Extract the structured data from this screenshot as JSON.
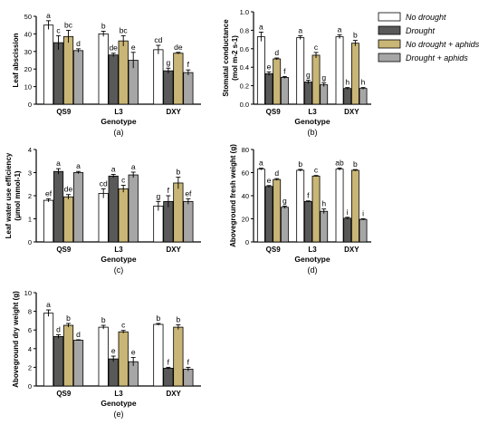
{
  "legend": {
    "entries": [
      {
        "label": "No drought",
        "color": "#ffffff"
      },
      {
        "label": "Drought",
        "color": "#595959"
      },
      {
        "label": "No drought + aphids",
        "color": "#c9b676"
      },
      {
        "label": "Drought + aphids",
        "color": "#a6a6a6"
      }
    ]
  },
  "chart_data": [
    {
      "type": "bar",
      "panel": "(a)",
      "categories": [
        "QS9",
        "L3",
        "DXY"
      ],
      "ylabel": "Leaf abscission",
      "xlabel": "Genotype",
      "ylim": [
        0,
        50
      ],
      "yticks": [
        "0",
        "10",
        "20",
        "30",
        "40",
        "50"
      ],
      "series": [
        {
          "name": "No drought",
          "values": [
            45,
            40,
            31
          ],
          "errors": [
            2.5,
            1.5,
            2.5
          ],
          "letters": [
            "a",
            "b",
            "cd"
          ]
        },
        {
          "name": "Drought",
          "values": [
            35,
            28,
            19
          ],
          "errors": [
            4,
            1,
            1.5
          ],
          "letters": [
            "c",
            "de",
            "g"
          ]
        },
        {
          "name": "No drought + aphids",
          "values": [
            38.5,
            36,
            29
          ],
          "errors": [
            3.5,
            3,
            0.5
          ],
          "letters": [
            "bc",
            "bc",
            "de"
          ]
        },
        {
          "name": "Drought + aphids",
          "values": [
            30.5,
            25,
            18
          ],
          "errors": [
            1,
            4.5,
            1.5
          ],
          "letters": [
            "d",
            "e",
            "f"
          ]
        }
      ]
    },
    {
      "type": "bar",
      "panel": "(b)",
      "categories": [
        "QS9",
        "L3",
        "DXY"
      ],
      "ylabel": "Stomatal conductance",
      "yunit": "(mol m-2 s-1)",
      "xlabel": "Genotype",
      "ylim": [
        0,
        1.0
      ],
      "yticks": [
        "0.0",
        "0.2",
        "0.4",
        "0.6",
        "0.8",
        "1.0"
      ],
      "series": [
        {
          "name": "No drought",
          "values": [
            0.73,
            0.72,
            0.73
          ],
          "errors": [
            0.05,
            0.02,
            0.02
          ],
          "letters": [
            "a",
            "a",
            "a"
          ]
        },
        {
          "name": "Drought",
          "values": [
            0.33,
            0.24,
            0.17
          ],
          "errors": [
            0.02,
            0.02,
            0.01
          ],
          "letters": [
            "e",
            "g",
            "h"
          ]
        },
        {
          "name": "No drought + aphids",
          "values": [
            0.49,
            0.53,
            0.66
          ],
          "errors": [
            0.01,
            0.03,
            0.03
          ],
          "letters": [
            "d",
            "c",
            "b"
          ]
        },
        {
          "name": "Drought + aphids",
          "values": [
            0.29,
            0.21,
            0.17
          ],
          "errors": [
            0.01,
            0.02,
            0.01
          ],
          "letters": [
            "f",
            "g",
            "h"
          ]
        }
      ]
    },
    {
      "type": "bar",
      "panel": "(c)",
      "categories": [
        "QS9",
        "L3",
        "DXY"
      ],
      "ylabel": "Leaf water use efficiency",
      "yunit": "(μmol mmol-1)",
      "xlabel": "Genotype",
      "ylim": [
        0,
        4
      ],
      "yticks": [
        "0",
        "1",
        "2",
        "3",
        "4"
      ],
      "series": [
        {
          "name": "No drought",
          "values": [
            1.8,
            2.1,
            1.55
          ],
          "errors": [
            0.07,
            0.2,
            0.2
          ],
          "letters": [
            "ef",
            "cd",
            "g"
          ]
        },
        {
          "name": "Drought",
          "values": [
            3.05,
            2.85,
            1.75
          ],
          "errors": [
            0.12,
            0.07,
            0.25
          ],
          "letters": [
            "a",
            "a",
            "f"
          ]
        },
        {
          "name": "No drought + aphids",
          "values": [
            1.95,
            2.3,
            2.55
          ],
          "errors": [
            0.1,
            0.15,
            0.25
          ],
          "letters": [
            "de",
            "c",
            "b"
          ]
        },
        {
          "name": "Drought + aphids",
          "values": [
            3.0,
            2.9,
            1.75
          ],
          "errors": [
            0.05,
            0.12,
            0.12
          ],
          "letters": [
            "a",
            "a",
            "ef"
          ]
        }
      ]
    },
    {
      "type": "bar",
      "panel": "(d)",
      "categories": [
        "QS9",
        "L3",
        "DXY"
      ],
      "ylabel": "Aboveground fresh weight (g)",
      "xlabel": "Genotype",
      "ylim": [
        0,
        80
      ],
      "yticks": [
        "0",
        "20",
        "40",
        "60",
        "80"
      ],
      "series": [
        {
          "name": "No drought",
          "values": [
            63,
            62,
            63
          ],
          "errors": [
            0.8,
            0.8,
            1.0
          ],
          "letters": [
            "a",
            "b",
            "ab"
          ]
        },
        {
          "name": "Drought",
          "values": [
            48,
            35,
            20.5
          ],
          "errors": [
            0.8,
            0.5,
            0.8
          ],
          "letters": [
            "e",
            "f",
            "i"
          ]
        },
        {
          "name": "No drought + aphids",
          "values": [
            54,
            57,
            62
          ],
          "errors": [
            0.8,
            0.5,
            0.6
          ],
          "letters": [
            "d",
            "c",
            "b"
          ]
        },
        {
          "name": "Drought + aphids",
          "values": [
            30,
            26.5,
            19.5
          ],
          "errors": [
            1,
            2,
            0.6
          ],
          "letters": [
            "g",
            "h",
            "i"
          ]
        }
      ]
    },
    {
      "type": "bar",
      "panel": "(e)",
      "categories": [
        "QS9",
        "L3",
        "DXY"
      ],
      "ylabel": "Aboveground dry weight (g)",
      "xlabel": "Genotype",
      "ylim": [
        0,
        10
      ],
      "yticks": [
        "0",
        "2",
        "4",
        "6",
        "8",
        "10"
      ],
      "series": [
        {
          "name": "No drought",
          "values": [
            7.8,
            6.3,
            6.6
          ],
          "errors": [
            0.35,
            0.2,
            0.1
          ],
          "letters": [
            "a",
            "b",
            "b"
          ]
        },
        {
          "name": "Drought",
          "values": [
            5.3,
            2.9,
            1.9
          ],
          "errors": [
            0.2,
            0.3,
            0.1
          ],
          "letters": [
            "d",
            "e",
            "f"
          ]
        },
        {
          "name": "No drought + aphids",
          "values": [
            6.5,
            5.8,
            6.3
          ],
          "errors": [
            0.2,
            0.15,
            0.25
          ],
          "letters": [
            "b",
            "c",
            "b"
          ]
        },
        {
          "name": "Drought + aphids",
          "values": [
            4.9,
            2.6,
            1.8
          ],
          "errors": [
            0.05,
            0.45,
            0.2
          ],
          "letters": [
            "d",
            "e",
            "f"
          ]
        }
      ]
    }
  ]
}
